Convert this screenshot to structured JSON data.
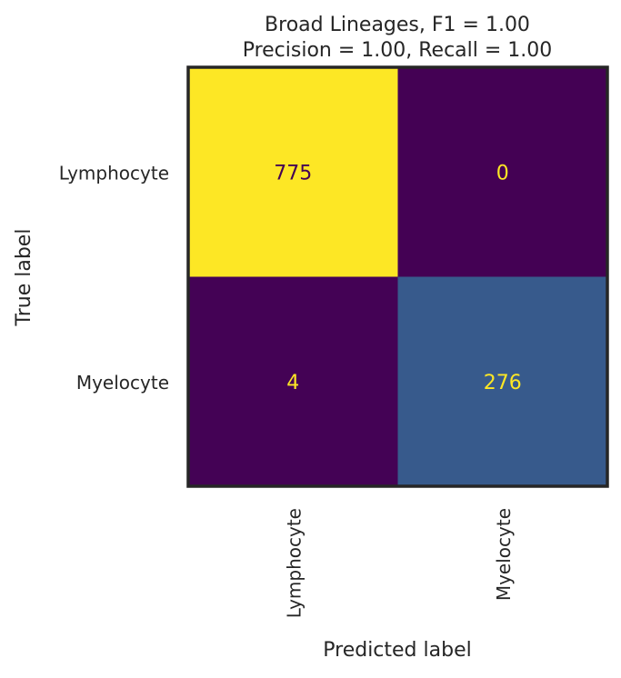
{
  "chart_data": {
    "type": "heatmap",
    "title_lines": [
      "Broad Lineages, F1 = 1.00",
      "Precision = 1.00, Recall = 1.00"
    ],
    "xlabel": "Predicted label",
    "ylabel": "True label",
    "x_categories": [
      "Lymphocyte",
      "Myelocyte"
    ],
    "y_categories": [
      "Lymphocyte",
      "Myelocyte"
    ],
    "matrix": [
      [
        775,
        0
      ],
      [
        4,
        276
      ]
    ],
    "colormap": "viridis",
    "value_range": [
      0,
      775
    ],
    "colors": {
      "high": "#fde725",
      "low": "#440154",
      "mid": "#2c6d8e",
      "text_on_high": "#440154",
      "text_on_low": "#fde725",
      "frame": "#262626"
    },
    "grid": false,
    "legend": "none"
  }
}
